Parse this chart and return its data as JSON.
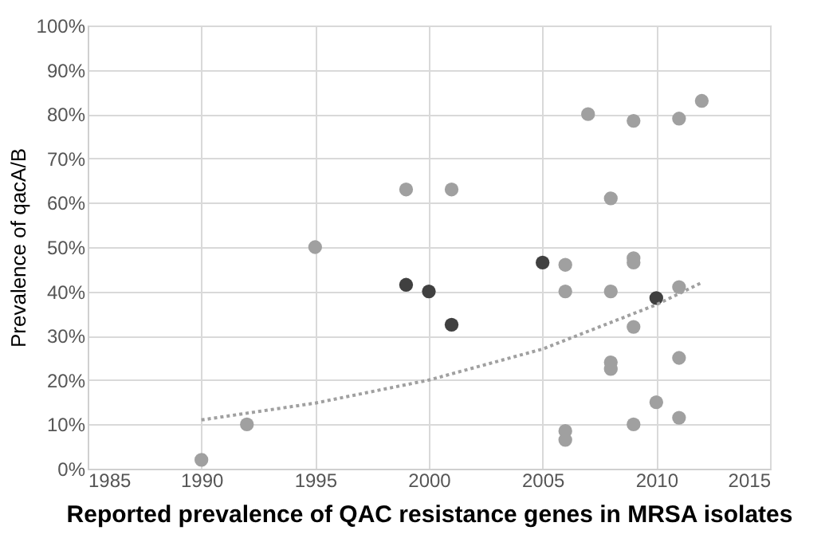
{
  "chart_data": {
    "type": "scatter",
    "xlabel": "Reported prevalence of QAC resistance genes in MRSA isolates",
    "ylabel": "Prevalence of qacA/B",
    "series": [
      {
        "color": "#a0a0a0",
        "x": [
          1990,
          1992,
          1995,
          1999,
          2001,
          2006,
          2006,
          2006,
          2006,
          2007,
          2008,
          2008,
          2008,
          2008,
          2009,
          2009,
          2009,
          2009,
          2009,
          2010,
          2011,
          2011,
          2011,
          2011,
          2012
        ],
        "values": [
          2,
          10,
          50,
          63,
          63,
          46,
          40,
          8.5,
          6.5,
          80,
          61,
          40,
          24,
          22.5,
          78.5,
          47.5,
          46.5,
          32,
          10,
          15,
          79,
          41,
          25,
          11.5,
          83
        ]
      },
      {
        "color": "#404040",
        "x": [
          1999,
          2000,
          2001,
          2005,
          2010
        ],
        "values": [
          41.5,
          40,
          32.5,
          46.5,
          38.5
        ]
      },
      {
        "type": "line",
        "color": "#a0a0a0",
        "line_style": "dotted",
        "marker": "none",
        "x": [
          1990,
          1995,
          2000,
          2005,
          2010,
          2012
        ],
        "values": [
          11,
          14.8,
          20,
          27,
          37,
          42
        ]
      }
    ],
    "xlim": [
      1985,
      2015
    ],
    "xticks": [
      1985,
      1990,
      1995,
      2000,
      2005,
      2010,
      2015
    ],
    "ylim": [
      0,
      100
    ],
    "yticks": [
      {
        "value": 0,
        "label": "0%"
      },
      {
        "value": 10,
        "label": "10%"
      },
      {
        "value": 20,
        "label": "20%"
      },
      {
        "value": 30,
        "label": "30%"
      },
      {
        "value": 40,
        "label": "40%"
      },
      {
        "value": 50,
        "label": "50%"
      },
      {
        "value": 60,
        "label": "60%"
      },
      {
        "value": 70,
        "label": "70%"
      },
      {
        "value": 80,
        "label": "80%"
      },
      {
        "value": 90,
        "label": "90%"
      },
      {
        "value": 100,
        "label": "100%"
      }
    ],
    "grid": true,
    "legend": false,
    "marker": "circle"
  }
}
